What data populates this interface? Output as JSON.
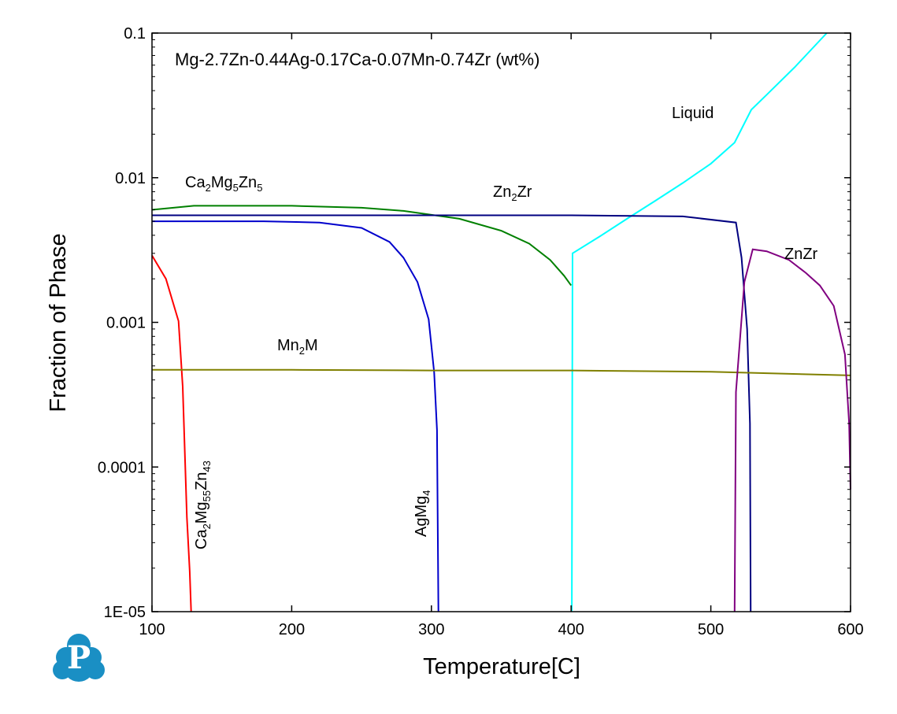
{
  "chart_data": {
    "type": "line",
    "title": "Mg-2.7Zn-0.44Ag-0.17Ca-0.07Mn-0.74Zr (wt%)",
    "xlabel": "Temperature[C]",
    "ylabel": "Fraction of Phase",
    "xlim": [
      100,
      600
    ],
    "ylim": [
      1e-05,
      0.1
    ],
    "yscale": "log",
    "grid": false,
    "x_ticks": [
      "100",
      "200",
      "300",
      "400",
      "500",
      "600"
    ],
    "y_ticks": [
      "1E-05",
      "0.0001",
      "0.001",
      "0.01",
      "0.1"
    ],
    "series": [
      {
        "name": "Liquid",
        "color": "#00ffff",
        "points": [
          [
            400.5,
            1e-05
          ],
          [
            401,
            0.003
          ],
          [
            420,
            0.0039
          ],
          [
            440,
            0.0052
          ],
          [
            460,
            0.0069
          ],
          [
            480,
            0.0092
          ],
          [
            500,
            0.0125
          ],
          [
            517,
            0.0175
          ],
          [
            529,
            0.0295
          ],
          [
            540,
            0.0375
          ],
          [
            560,
            0.058
          ],
          [
            583,
            0.1
          ]
        ]
      },
      {
        "name": "Ca2Mg5Zn5",
        "color": "#008000",
        "points": [
          [
            100,
            0.006
          ],
          [
            130,
            0.0064
          ],
          [
            160,
            0.0064
          ],
          [
            200,
            0.0064
          ],
          [
            250,
            0.0062
          ],
          [
            280,
            0.0059
          ],
          [
            320,
            0.0052
          ],
          [
            350,
            0.0043
          ],
          [
            370,
            0.0035
          ],
          [
            385,
            0.0027
          ],
          [
            395,
            0.0021
          ],
          [
            400,
            0.0018
          ]
        ]
      },
      {
        "name": "Zn2Zr",
        "color": "#000080",
        "points": [
          [
            100,
            0.0055
          ],
          [
            200,
            0.0055
          ],
          [
            300,
            0.0055
          ],
          [
            400,
            0.0055
          ],
          [
            480,
            0.0054
          ],
          [
            518,
            0.0049
          ],
          [
            522,
            0.0028
          ],
          [
            526,
            0.0009
          ],
          [
            528,
            0.0002
          ],
          [
            528.5,
            1e-05
          ]
        ]
      },
      {
        "name": "AgMg4",
        "color": "#0000cc",
        "points": [
          [
            100,
            0.005
          ],
          [
            180,
            0.005
          ],
          [
            220,
            0.0049
          ],
          [
            250,
            0.0045
          ],
          [
            270,
            0.0036
          ],
          [
            280,
            0.0028
          ],
          [
            290,
            0.0019
          ],
          [
            298,
            0.00105
          ],
          [
            302,
            0.00045
          ],
          [
            304,
            0.00018
          ],
          [
            305,
            1e-05
          ]
        ]
      },
      {
        "name": "Ca2Mg55Zn43",
        "color": "#ff0000",
        "points": [
          [
            100,
            0.0029
          ],
          [
            110,
            0.002
          ],
          [
            119,
            0.00102
          ],
          [
            122,
            0.00036
          ],
          [
            125,
            4.5e-05
          ],
          [
            127,
            1.9e-05
          ],
          [
            128,
            1e-05
          ]
        ]
      },
      {
        "name": "Mn2M",
        "color": "#808000",
        "points": [
          [
            100,
            0.00047
          ],
          [
            200,
            0.00047
          ],
          [
            300,
            0.000465
          ],
          [
            400,
            0.000465
          ],
          [
            500,
            0.000455
          ],
          [
            600,
            0.00043
          ]
        ]
      },
      {
        "name": "ZnZr",
        "color": "#800080",
        "points": [
          [
            517,
            1e-05
          ],
          [
            518,
            0.00033
          ],
          [
            524,
            0.0019
          ],
          [
            530,
            0.0032
          ],
          [
            540,
            0.0031
          ],
          [
            556,
            0.0027
          ],
          [
            568,
            0.0022
          ],
          [
            578,
            0.0018
          ],
          [
            588,
            0.0013
          ],
          [
            596,
            0.0006
          ],
          [
            599,
            0.0002
          ],
          [
            600,
            7e-05
          ]
        ]
      }
    ],
    "annotations": [
      {
        "text": "Liquid",
        "series": "Liquid"
      },
      {
        "text": "Ca2Mg5Zn5",
        "series": "Ca2Mg5Zn5"
      },
      {
        "text": "Zn2Zr",
        "series": "Zn2Zr"
      },
      {
        "text": "ZnZr",
        "series": "ZnZr"
      },
      {
        "text": "Mn2M",
        "series": "Mn2M"
      },
      {
        "text": "Ca2Mg55Zn43",
        "series": "Ca2Mg55Zn43"
      },
      {
        "text": "AgMg4",
        "series": "AgMg4"
      }
    ]
  },
  "logo": {
    "glyph": "P",
    "color": "#1a8fc4"
  }
}
